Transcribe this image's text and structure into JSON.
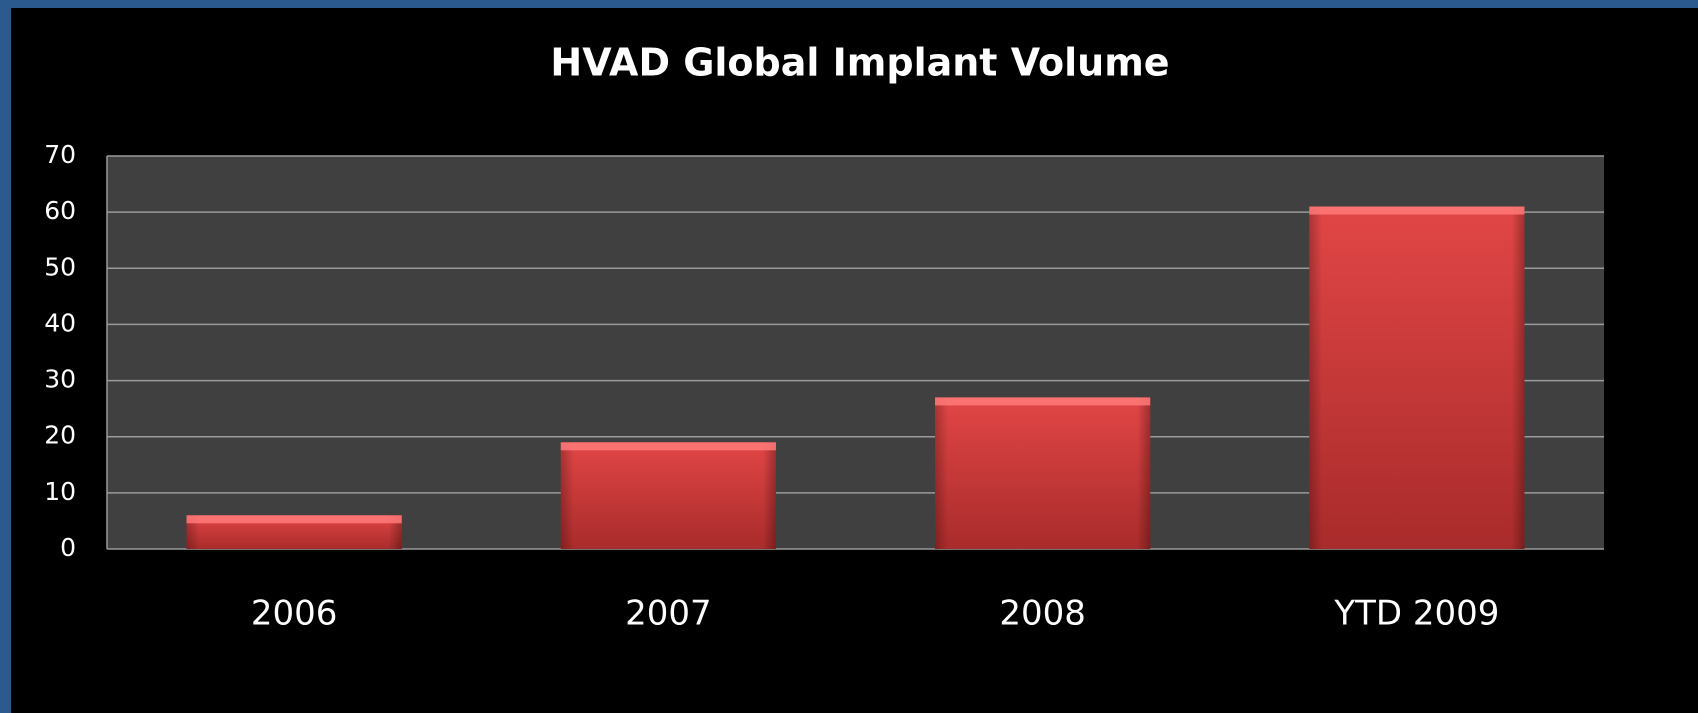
{
  "chart_data": {
    "type": "bar",
    "title": "HVAD Global Implant Volume",
    "categories": [
      "2006",
      "2007",
      "2008",
      "YTD 2009"
    ],
    "values": [
      6,
      19,
      27,
      61
    ],
    "color": "#d94040",
    "ylim": [
      0,
      70
    ],
    "yticks": [
      0,
      10,
      20,
      30,
      40,
      50,
      60,
      70
    ],
    "grid": true
  }
}
